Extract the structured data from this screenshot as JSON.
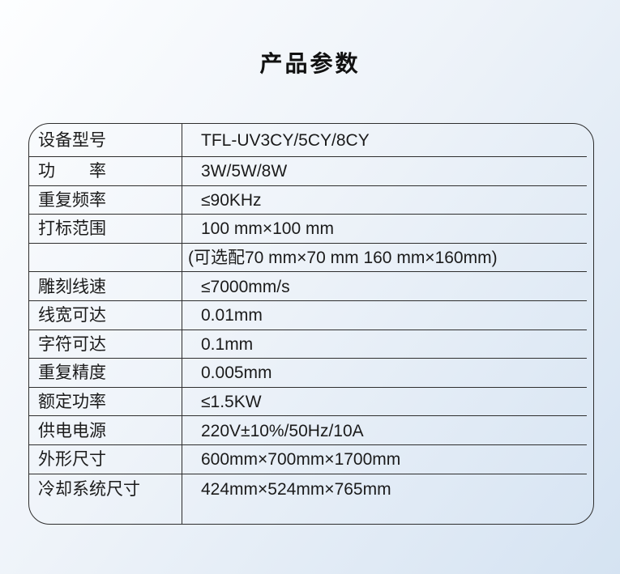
{
  "page": {
    "title": "产品参数"
  },
  "theme": {
    "border": "#2e2e2e",
    "text": "#1b1b1b",
    "title": "#111111",
    "bg1": "#fdfeff",
    "bg2": "#eef3f9",
    "bg3": "#d5e3f2"
  },
  "table": {
    "rows": [
      {
        "label": "设备型号",
        "value": "TFL-UV3CY/5CY/8CY"
      },
      {
        "label": "功　　率",
        "value": "3W/5W/8W"
      },
      {
        "label": "重复频率",
        "value": "≤90KHz"
      },
      {
        "label": "打标范围",
        "value": "100 mm×100 mm"
      },
      {
        "label": "",
        "value": "(可选配70 mm×70 mm  160 mm×160mm)"
      },
      {
        "label": "雕刻线速",
        "value": "≤7000mm/s"
      },
      {
        "label": "线宽可达",
        "value": "0.01mm"
      },
      {
        "label": "字符可达",
        "value": "0.1mm"
      },
      {
        "label": "重复精度",
        "value": "0.005mm"
      },
      {
        "label": "额定功率",
        "value": "≤1.5KW"
      },
      {
        "label": "供电电源",
        "value": "220V±10%/50Hz/10A"
      },
      {
        "label": "外形尺寸",
        "value": "600mm×700mm×1700mm"
      },
      {
        "label": "冷却系统尺寸",
        "value": "424mm×524mm×765mm"
      }
    ]
  }
}
